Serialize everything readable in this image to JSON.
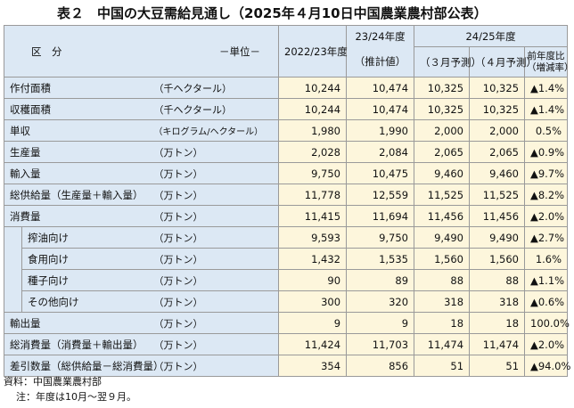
{
  "title": "表２　中国の大豆需給見通し（2025年４月10日中国農業農村部公表）",
  "header": {
    "category": "区　分",
    "unit": "－単位－",
    "col_2022": "2022/23年度",
    "group_2324": "23/24年度",
    "sub_2324": "（推計値）",
    "group_2425": "24/25年度",
    "sub_mar": "（３月予測）",
    "sub_apr": "（４月予測）",
    "yoy_line1": "前年度比",
    "yoy_line2": "（増減率）"
  },
  "rows": [
    {
      "label": "作付面積",
      "unit": "（千ヘクタール）",
      "v2022": "10,244",
      "v2324": "10,474",
      "mar": "10,325",
      "apr": "10,325",
      "yoy": "▲1.4%"
    },
    {
      "label": "収穫面積",
      "unit": "（千ヘクタール）",
      "v2022": "10,244",
      "v2324": "10,474",
      "mar": "10,325",
      "apr": "10,325",
      "yoy": "▲1.4%"
    },
    {
      "label": "単収",
      "unit": "（キログラム/ヘクタール）",
      "v2022": "1,980",
      "v2324": "1,990",
      "mar": "2,000",
      "apr": "2,000",
      "yoy": "0.5%"
    },
    {
      "label": "生産量",
      "unit": "（万トン）",
      "v2022": "2,028",
      "v2324": "2,084",
      "mar": "2,065",
      "apr": "2,065",
      "yoy": "▲0.9%"
    },
    {
      "label": "輸入量",
      "unit": "（万トン）",
      "v2022": "9,750",
      "v2324": "10,475",
      "mar": "9,460",
      "apr": "9,460",
      "yoy": "▲9.7%"
    },
    {
      "label": "総供給量（生産量＋輸入量）",
      "unit": "（万トン）",
      "v2022": "11,778",
      "v2324": "12,559",
      "mar": "11,525",
      "apr": "11,525",
      "yoy": "▲8.2%"
    },
    {
      "label": "消費量",
      "unit": "（万トン）",
      "v2022": "11,415",
      "v2324": "11,694",
      "mar": "11,456",
      "apr": "11,456",
      "yoy": "▲2.0%"
    },
    {
      "label": "搾油向け",
      "unit": "（万トン）",
      "v2022": "9,593",
      "v2324": "9,750",
      "mar": "9,490",
      "apr": "9,490",
      "yoy": "▲2.7%"
    },
    {
      "label": "食用向け",
      "unit": "（万トン）",
      "v2022": "1,432",
      "v2324": "1,535",
      "mar": "1,560",
      "apr": "1,560",
      "yoy": "1.6%"
    },
    {
      "label": "種子向け",
      "unit": "（万トン）",
      "v2022": "90",
      "v2324": "89",
      "mar": "88",
      "apr": "88",
      "yoy": "▲1.1%"
    },
    {
      "label": "その他向け",
      "unit": "（万トン）",
      "v2022": "300",
      "v2324": "320",
      "mar": "318",
      "apr": "318",
      "yoy": "▲0.6%"
    },
    {
      "label": "輸出量",
      "unit": "（万トン）",
      "v2022": "9",
      "v2324": "9",
      "mar": "18",
      "apr": "18",
      "yoy": "100.0%"
    },
    {
      "label": "総消費量（消費量＋輸出量）",
      "unit": "（万トン）",
      "v2022": "11,424",
      "v2324": "11,703",
      "mar": "11,474",
      "apr": "11,474",
      "yoy": "▲2.0%"
    },
    {
      "label": "差引数量（総供給量－総消費量）",
      "unit": "（万トン）",
      "v2022": "354",
      "v2324": "856",
      "mar": "51",
      "apr": "51",
      "yoy": "▲94.0%"
    }
  ],
  "notes": {
    "source": "資料：中国農業農村部",
    "note": "注：年度は10月～翌９月。"
  }
}
